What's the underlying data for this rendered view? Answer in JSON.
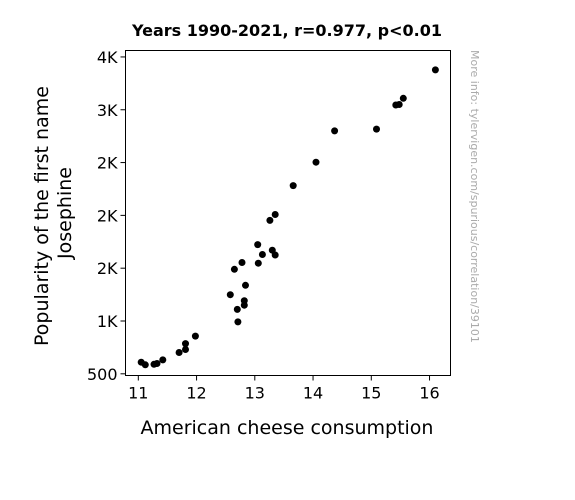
{
  "chart_data": {
    "type": "scatter",
    "title": "Years 1990-2021, r=0.977, p<0.01",
    "xlabel": "American cheese consumption",
    "ylabel_lines": [
      "Popularity of the first name",
      "Josephine"
    ],
    "watermark": "More info: tylervigen.com/spurious/correlation/39101",
    "xlim": [
      10.78,
      16.36
    ],
    "ylim": [
      484,
      3561
    ],
    "x_ticks": [
      {
        "value": 11,
        "label": "11"
      },
      {
        "value": 12,
        "label": "12"
      },
      {
        "value": 13,
        "label": "13"
      },
      {
        "value": 14,
        "label": "14"
      },
      {
        "value": 15,
        "label": "15"
      },
      {
        "value": 16,
        "label": "16"
      }
    ],
    "y_ticks": [
      {
        "value": 500,
        "label": "500"
      },
      {
        "value": 1000,
        "label": "1K"
      },
      {
        "value": 1500,
        "label": "2K"
      },
      {
        "value": 2000,
        "label": "2K"
      },
      {
        "value": 2500,
        "label": "2K"
      },
      {
        "value": 3000,
        "label": "3K"
      },
      {
        "value": 3500,
        "label": "4K"
      }
    ],
    "point_color": "#000000",
    "grid": false,
    "points": [
      {
        "x": 11.05,
        "y": 610
      },
      {
        "x": 11.12,
        "y": 585
      },
      {
        "x": 11.27,
        "y": 590
      },
      {
        "x": 11.32,
        "y": 598
      },
      {
        "x": 11.42,
        "y": 632
      },
      {
        "x": 11.7,
        "y": 702
      },
      {
        "x": 11.81,
        "y": 730
      },
      {
        "x": 11.81,
        "y": 786
      },
      {
        "x": 11.98,
        "y": 857
      },
      {
        "x": 12.58,
        "y": 1249
      },
      {
        "x": 12.65,
        "y": 1489
      },
      {
        "x": 12.7,
        "y": 1110
      },
      {
        "x": 12.71,
        "y": 991
      },
      {
        "x": 12.78,
        "y": 1554
      },
      {
        "x": 12.82,
        "y": 1150
      },
      {
        "x": 12.82,
        "y": 1192
      },
      {
        "x": 12.84,
        "y": 1338
      },
      {
        "x": 13.05,
        "y": 1723
      },
      {
        "x": 13.06,
        "y": 1547
      },
      {
        "x": 13.13,
        "y": 1630
      },
      {
        "x": 13.26,
        "y": 1952
      },
      {
        "x": 13.3,
        "y": 1670
      },
      {
        "x": 13.35,
        "y": 2008
      },
      {
        "x": 13.35,
        "y": 1625
      },
      {
        "x": 13.66,
        "y": 2282
      },
      {
        "x": 14.05,
        "y": 2503
      },
      {
        "x": 14.37,
        "y": 2800
      },
      {
        "x": 15.09,
        "y": 2817
      },
      {
        "x": 15.42,
        "y": 3045
      },
      {
        "x": 15.48,
        "y": 3050
      },
      {
        "x": 15.55,
        "y": 3108
      },
      {
        "x": 16.1,
        "y": 3377
      }
    ]
  }
}
